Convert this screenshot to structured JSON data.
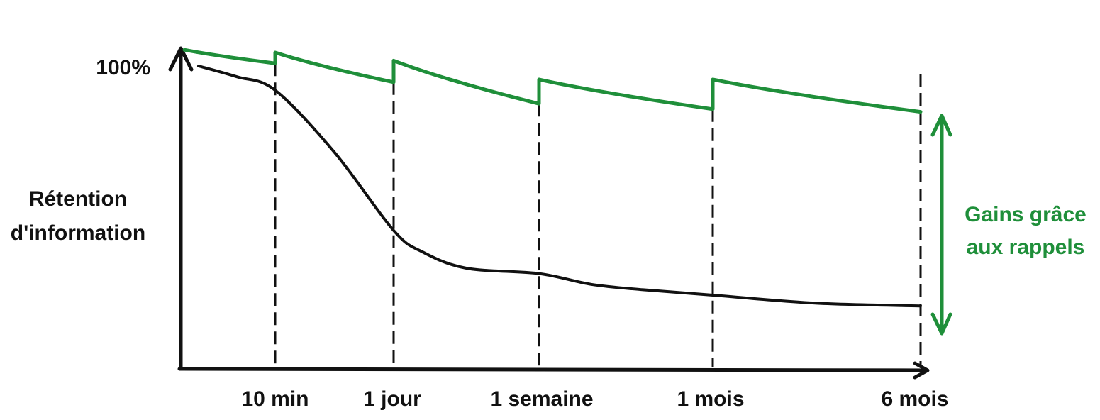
{
  "chart_data": {
    "type": "line",
    "ylabel": [
      "Rétention",
      "d'information"
    ],
    "y_tick_label": "100%",
    "x_tick_labels": [
      "10 min",
      "1 jour",
      "1 semaine",
      "1 mois",
      "6 mois"
    ],
    "annotation": [
      "Gains grâce",
      "aux rappels"
    ],
    "colors": {
      "axis": "#111111",
      "forgetting_curve": "#111111",
      "review_curve": "#1f8f3a",
      "annotation": "#1f8f3a"
    },
    "series": [
      {
        "style": "black",
        "x": [
          0,
          0.5,
          1,
          1.5,
          2,
          2.2,
          2.5,
          3,
          3.3,
          3.6,
          4,
          4.5,
          5
        ],
        "y": [
          100,
          96,
          91,
          68,
          39,
          31,
          25,
          23,
          19,
          17,
          15,
          12,
          11
        ]
      },
      {
        "style": "green-sawtooth",
        "segments": [
          {
            "x": [
              0,
              1
            ],
            "y": [
              106,
              101
            ]
          },
          {
            "x": [
              1,
              2
            ],
            "y": [
              105,
              94
            ]
          },
          {
            "x": [
              2,
              3
            ],
            "y": [
              102,
              86
            ]
          },
          {
            "x": [
              3,
              4
            ],
            "y": [
              95,
              84
            ]
          },
          {
            "x": [
              4,
              5
            ],
            "y": [
              95,
              83
            ]
          }
        ]
      }
    ]
  }
}
